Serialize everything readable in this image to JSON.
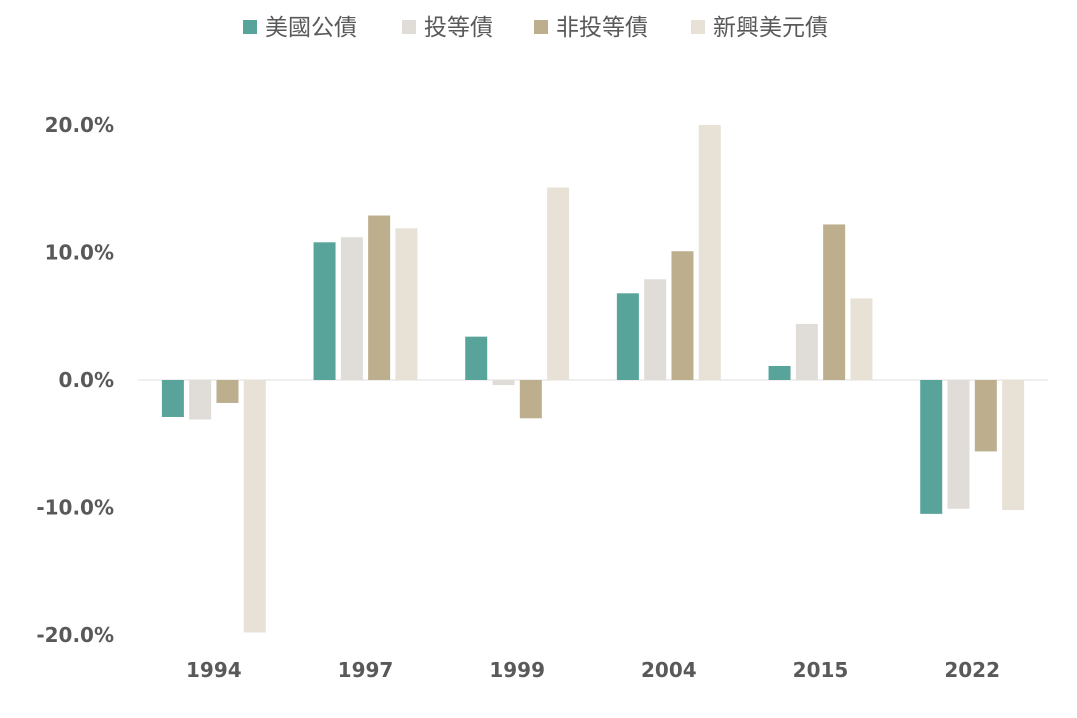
{
  "chart_data": {
    "type": "bar",
    "categories": [
      "1994",
      "1997",
      "1999",
      "2004",
      "2015",
      "2022"
    ],
    "series": [
      {
        "name": "美國公債",
        "color": "#58A49B",
        "values": [
          -2.9,
          10.8,
          3.4,
          6.8,
          1.1,
          -10.5
        ]
      },
      {
        "name": "投等債",
        "color": "#E0DDD8",
        "values": [
          -3.1,
          11.2,
          -0.4,
          7.9,
          4.4,
          -10.1
        ]
      },
      {
        "name": "非投等債",
        "color": "#BDAE8E",
        "values": [
          -1.8,
          12.9,
          -3.0,
          10.1,
          12.2,
          -5.6
        ]
      },
      {
        "name": "新興美元債",
        "color": "#E8E1D6",
        "values": [
          -19.8,
          11.9,
          15.1,
          20.0,
          6.4,
          -10.2
        ]
      }
    ],
    "yticks": [
      "20.0%",
      "10.0%",
      "0.0%",
      "-10.0%",
      "-20.0%"
    ],
    "ytick_values": [
      20,
      10,
      0,
      -10,
      -20
    ],
    "ylim": [
      -20,
      20
    ],
    "legend_position": "top",
    "grid": false
  }
}
